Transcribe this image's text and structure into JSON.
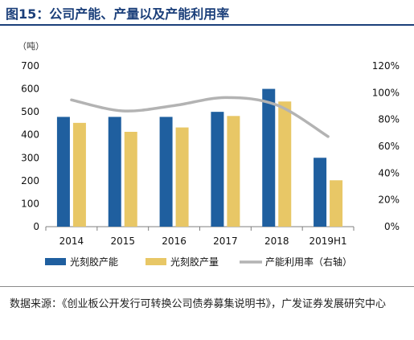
{
  "header": {
    "title": "图15：公司产能、产量以及产能利用率"
  },
  "footer": {
    "source": "数据来源：《创业板公开发行可转换公司债券募集说明书》，广发证券发展研究中心"
  },
  "chart_data": {
    "type": "bar",
    "categories": [
      "2014",
      "2015",
      "2016",
      "2017",
      "2018",
      "2019H1"
    ],
    "y_unit": "（吨）",
    "ylim": [
      0,
      700
    ],
    "yticks": [
      "0",
      "100",
      "200",
      "300",
      "400",
      "500",
      "600",
      "700"
    ],
    "y2lim": [
      0,
      120
    ],
    "y2ticks": [
      "0%",
      "20%",
      "40%",
      "60%",
      "80%",
      "100%",
      "120%"
    ],
    "grid": false,
    "legend_position": "bottom",
    "series": [
      {
        "name": "光刻胶产能",
        "kind": "bar",
        "axis": "left",
        "color": "#1f5f9f",
        "values": [
          478,
          478,
          478,
          500,
          600,
          300
        ]
      },
      {
        "name": "光刻胶产量",
        "kind": "bar",
        "axis": "left",
        "color": "#e8c766",
        "values": [
          452,
          413,
          432,
          482,
          545,
          202
        ]
      },
      {
        "name": "产能利用率（右轴）",
        "kind": "line",
        "axis": "right",
        "color": "#b3b3b3",
        "values": [
          94.6,
          86.4,
          90.4,
          96.4,
          90.8,
          67.3
        ]
      }
    ]
  }
}
